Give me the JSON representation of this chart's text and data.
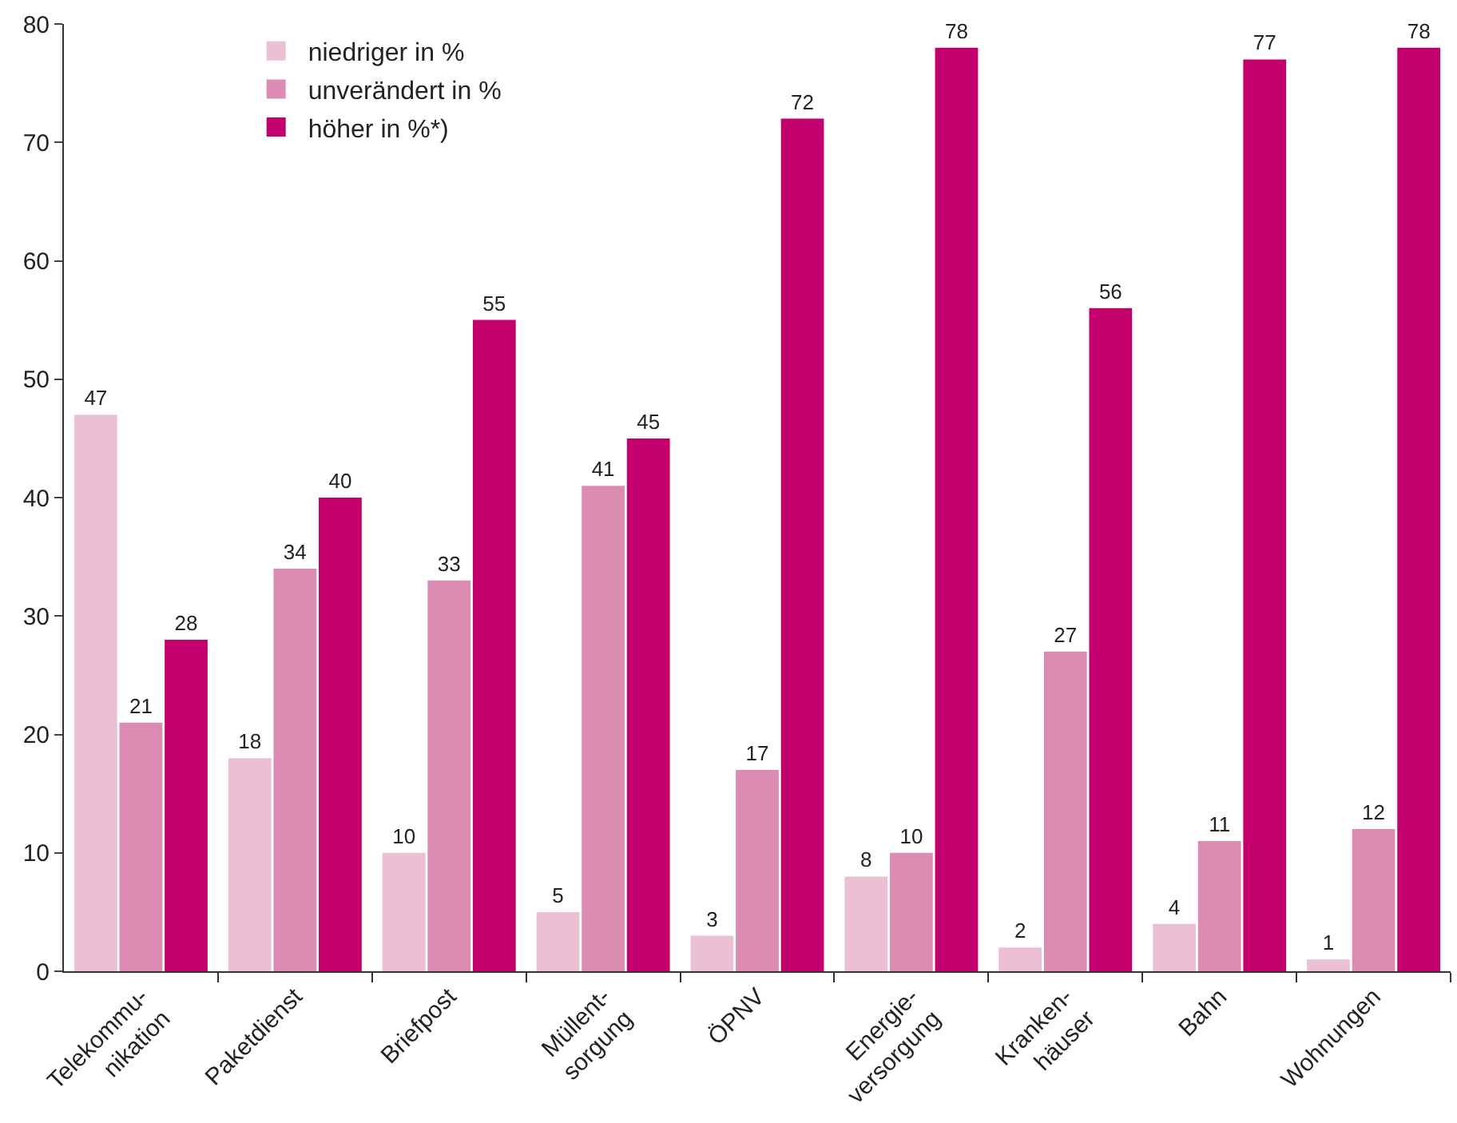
{
  "chart_data": {
    "type": "bar",
    "categories": [
      "Telekommu-\nnikation",
      "Paketdienst",
      "Briefpost",
      "Müllent-\nsorgung",
      "ÖPNV",
      "Energie-\nversorgung",
      "Kranken-\nhäuser",
      "Bahn",
      "Wohnungen"
    ],
    "series": [
      {
        "name": "niedriger in %",
        "color": "#ecc0d4",
        "values": [
          47,
          18,
          10,
          5,
          3,
          8,
          2,
          4,
          1
        ]
      },
      {
        "name": "unverändert in %",
        "color": "#dc8cb2",
        "values": [
          21,
          34,
          33,
          41,
          17,
          10,
          27,
          11,
          12
        ]
      },
      {
        "name": "höher in %*)",
        "color": "#c4006e",
        "values": [
          28,
          40,
          55,
          45,
          72,
          78,
          56,
          77,
          78
        ]
      }
    ],
    "ylim": [
      0,
      80
    ],
    "yticks": [
      0,
      10,
      20,
      30,
      40,
      50,
      60,
      70,
      80
    ],
    "grid": false,
    "legend": "top left",
    "data_labels": true
  }
}
